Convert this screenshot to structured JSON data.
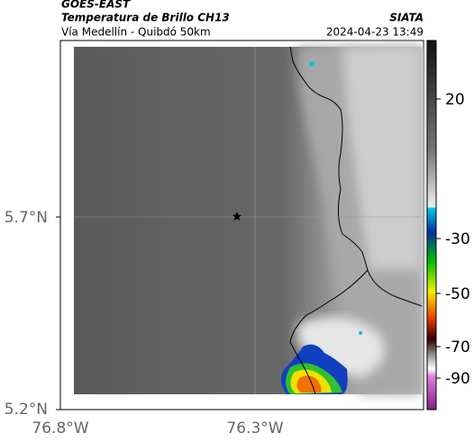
{
  "header": {
    "title": "GOES-EAST",
    "subtitle": "Temperatura de Brillo CH13",
    "source": "SIATA",
    "route": "Vía Medellín - Quibdó 50km",
    "timestamp": "2024-04-23 13:49"
  },
  "latitude_labels": [
    "5.7°N",
    "5.2°N"
  ],
  "longitude_labels": [
    "76.8°W",
    "76.3°W"
  ],
  "colorbar_labels": [
    "20",
    "-30",
    "-50",
    "-70",
    "-90"
  ]
}
